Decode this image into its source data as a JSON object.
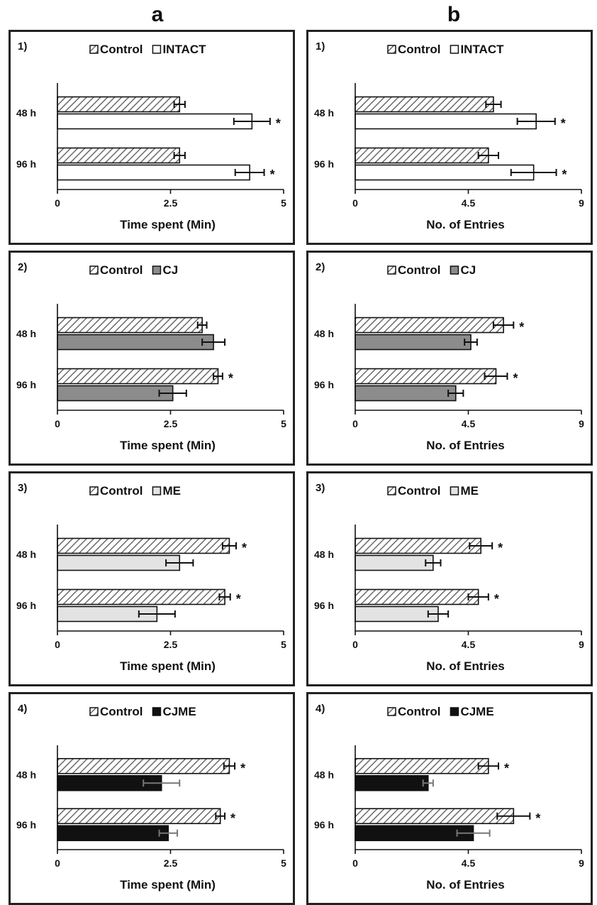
{
  "columns": [
    "a",
    "b"
  ],
  "chart_data": [
    {
      "type": "bar",
      "panel_label": "1)",
      "categories": [
        "48 h",
        "96 h"
      ],
      "series": [
        {
          "name": "Control",
          "values": [
            2.7,
            2.7
          ],
          "errors": [
            0.12,
            0.12
          ],
          "style": "hatch"
        },
        {
          "name": "INTACT",
          "values": [
            4.3,
            4.25
          ],
          "errors": [
            0.4,
            0.32
          ],
          "style": "white"
        }
      ],
      "significant": [
        [
          false,
          false
        ],
        [
          true,
          true
        ]
      ],
      "xlabel": "Time spent (Min)",
      "xticks": [
        "0",
        "2.5",
        "5"
      ],
      "xlim": [
        0,
        5
      ]
    },
    {
      "type": "bar",
      "panel_label": "1)",
      "categories": [
        "48 h",
        "96 h"
      ],
      "series": [
        {
          "name": "Control",
          "values": [
            5.5,
            5.3
          ],
          "errors": [
            0.3,
            0.4
          ],
          "style": "hatch"
        },
        {
          "name": "INTACT",
          "values": [
            7.2,
            7.1
          ],
          "errors": [
            0.75,
            0.9
          ],
          "style": "white"
        }
      ],
      "significant": [
        [
          false,
          false
        ],
        [
          true,
          true
        ]
      ],
      "xlabel": "No. of Entries",
      "xticks": [
        "0",
        "4.5",
        "9"
      ],
      "xlim": [
        0,
        9
      ]
    },
    {
      "type": "bar",
      "panel_label": "2)",
      "categories": [
        "48 h",
        "96 h"
      ],
      "series": [
        {
          "name": "Control",
          "values": [
            3.2,
            3.55
          ],
          "errors": [
            0.1,
            0.1
          ],
          "style": "hatch"
        },
        {
          "name": "CJ",
          "values": [
            3.45,
            2.55
          ],
          "errors": [
            0.25,
            0.3
          ],
          "style": "darkgray"
        }
      ],
      "significant": [
        [
          false,
          true
        ],
        [
          false,
          false
        ]
      ],
      "xlabel": "Time spent (Min)",
      "xticks": [
        "0",
        "2.5",
        "5"
      ],
      "xlim": [
        0,
        5
      ]
    },
    {
      "type": "bar",
      "panel_label": "2)",
      "categories": [
        "48 h",
        "96 h"
      ],
      "series": [
        {
          "name": "Control",
          "values": [
            5.9,
            5.6
          ],
          "errors": [
            0.4,
            0.45
          ],
          "style": "hatch"
        },
        {
          "name": "CJ",
          "values": [
            4.6,
            4.0
          ],
          "errors": [
            0.25,
            0.3
          ],
          "style": "darkgray"
        }
      ],
      "significant": [
        [
          true,
          true
        ],
        [
          false,
          false
        ]
      ],
      "xlabel": "No. of Entries",
      "xticks": [
        "0",
        "4.5",
        "9"
      ],
      "xlim": [
        0,
        9
      ]
    },
    {
      "type": "bar",
      "panel_label": "3)",
      "categories": [
        "48 h",
        "96 h"
      ],
      "series": [
        {
          "name": "Control",
          "values": [
            3.8,
            3.7
          ],
          "errors": [
            0.15,
            0.12
          ],
          "style": "hatch"
        },
        {
          "name": "ME",
          "values": [
            2.7,
            2.2
          ],
          "errors": [
            0.3,
            0.4
          ],
          "style": "lightgray"
        }
      ],
      "significant": [
        [
          true,
          true
        ],
        [
          false,
          false
        ]
      ],
      "xlabel": "Time spent (Min)",
      "xticks": [
        "0",
        "2.5",
        "5"
      ],
      "xlim": [
        0,
        5
      ]
    },
    {
      "type": "bar",
      "panel_label": "3)",
      "categories": [
        "48 h",
        "96 h"
      ],
      "series": [
        {
          "name": "Control",
          "values": [
            5.0,
            4.9
          ],
          "errors": [
            0.45,
            0.4
          ],
          "style": "hatch"
        },
        {
          "name": "ME",
          "values": [
            3.1,
            3.3
          ],
          "errors": [
            0.3,
            0.4
          ],
          "style": "lightgray"
        }
      ],
      "significant": [
        [
          true,
          true
        ],
        [
          false,
          false
        ]
      ],
      "xlabel": "No. of Entries",
      "xticks": [
        "0",
        "4.5",
        "9"
      ],
      "xlim": [
        0,
        9
      ]
    },
    {
      "type": "bar",
      "panel_label": "4)",
      "categories": [
        "48 h",
        "96 h"
      ],
      "series": [
        {
          "name": "Control",
          "values": [
            3.8,
            3.6
          ],
          "errors": [
            0.12,
            0.1
          ],
          "style": "hatch"
        },
        {
          "name": "CJME",
          "values": [
            2.3,
            2.45
          ],
          "errors": [
            0.4,
            0.2
          ],
          "style": "black"
        }
      ],
      "significant": [
        [
          true,
          true
        ],
        [
          false,
          false
        ]
      ],
      "xlabel": "Time spent (Min)",
      "xticks": [
        "0",
        "2.5",
        "5"
      ],
      "xlim": [
        0,
        5
      ]
    },
    {
      "type": "bar",
      "panel_label": "4)",
      "categories": [
        "48 h",
        "96 h"
      ],
      "series": [
        {
          "name": "Control",
          "values": [
            5.3,
            6.3
          ],
          "errors": [
            0.4,
            0.65
          ],
          "style": "hatch"
        },
        {
          "name": "CJME",
          "values": [
            2.9,
            4.7
          ],
          "errors": [
            0.2,
            0.65
          ],
          "style": "black"
        }
      ],
      "significant": [
        [
          true,
          true
        ],
        [
          false,
          false
        ]
      ],
      "xlabel": "No. of Entries",
      "xticks": [
        "0",
        "4.5",
        "9"
      ],
      "xlim": [
        0,
        9
      ]
    }
  ]
}
